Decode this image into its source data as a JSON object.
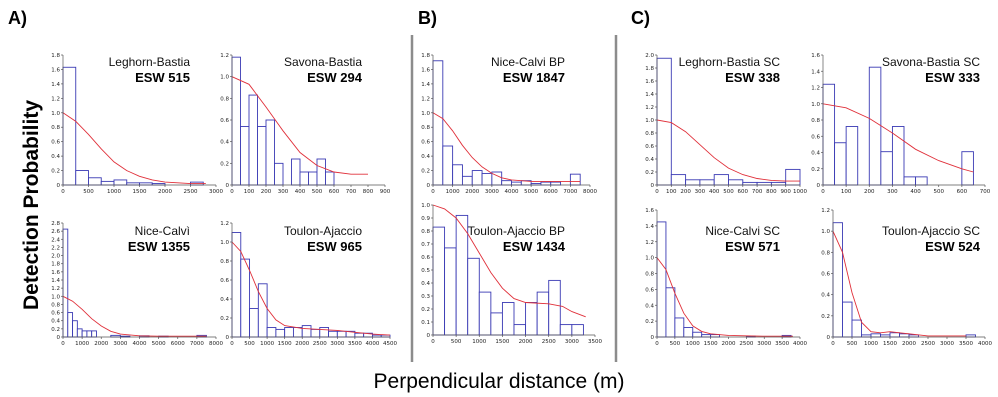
{
  "figure": {
    "panel_labels": [
      "A)",
      "B)",
      "C)"
    ],
    "ylabel": "Detection Probability",
    "xlabel": "Perpendicular distance (m)"
  },
  "chart_data": [
    {
      "id": "a1",
      "panel": "A",
      "type": "bar",
      "title": "Leghorn-Bastia",
      "esw": "ESW 515",
      "xlim": [
        0,
        3000
      ],
      "xticks": [
        0,
        500,
        1000,
        1500,
        2000,
        2500,
        3000
      ],
      "ylim": [
        0,
        1.8
      ],
      "yticks": [
        "0",
        "0.2",
        "0.4",
        "0.6",
        "0.8",
        "1.0",
        "1.2",
        "1.4",
        "1.6",
        "1.8"
      ],
      "bins": [
        [
          0,
          250,
          1.63
        ],
        [
          250,
          500,
          0.2
        ],
        [
          500,
          750,
          0.1
        ],
        [
          750,
          1000,
          0.05
        ],
        [
          1000,
          1250,
          0.07
        ],
        [
          1250,
          1500,
          0.03
        ],
        [
          1500,
          1750,
          0.03
        ],
        [
          1750,
          2000,
          0.02
        ],
        [
          2500,
          2750,
          0.04
        ]
      ],
      "curve": [
        [
          0,
          1.0
        ],
        [
          250,
          0.88
        ],
        [
          500,
          0.7
        ],
        [
          750,
          0.5
        ],
        [
          1000,
          0.32
        ],
        [
          1250,
          0.2
        ],
        [
          1500,
          0.12
        ],
        [
          1750,
          0.07
        ],
        [
          2000,
          0.04
        ],
        [
          2500,
          0.02
        ],
        [
          2800,
          0.02
        ]
      ]
    },
    {
      "id": "a2",
      "panel": "A",
      "type": "bar",
      "title": "Savona-Bastia",
      "esw": "ESW 294",
      "xlim": [
        0,
        900
      ],
      "xticks": [
        0,
        100,
        200,
        300,
        400,
        500,
        600,
        700,
        800,
        900
      ],
      "ylim": [
        0,
        1.2
      ],
      "yticks": [
        "0",
        "0.2",
        "0.4",
        "0.6",
        "0.8",
        "1.0",
        "1.2"
      ],
      "bins": [
        [
          0,
          50,
          1.18
        ],
        [
          50,
          100,
          0.54
        ],
        [
          100,
          150,
          0.83
        ],
        [
          150,
          200,
          0.54
        ],
        [
          200,
          250,
          0.6
        ],
        [
          250,
          300,
          0.2
        ],
        [
          350,
          400,
          0.24
        ],
        [
          400,
          450,
          0.12
        ],
        [
          450,
          500,
          0.12
        ],
        [
          500,
          550,
          0.24
        ],
        [
          550,
          600,
          0.12
        ]
      ],
      "curve": [
        [
          0,
          1.0
        ],
        [
          100,
          0.93
        ],
        [
          200,
          0.72
        ],
        [
          300,
          0.5
        ],
        [
          400,
          0.3
        ],
        [
          500,
          0.18
        ],
        [
          600,
          0.12
        ],
        [
          700,
          0.1
        ],
        [
          800,
          0.1
        ]
      ]
    },
    {
      "id": "a3",
      "panel": "A",
      "type": "bar",
      "title": "Nice-Calvì",
      "esw": "ESW 1355",
      "xlim": [
        0,
        8000
      ],
      "xticks": [
        0,
        1000,
        2000,
        3000,
        4000,
        5000,
        6000,
        7000,
        8000
      ],
      "ylim": [
        0,
        2.8
      ],
      "yticks": [
        "0",
        "0.2",
        "0.4",
        "0.6",
        "0.8",
        "1.0",
        "1.2",
        "1.4",
        "1.6",
        "1.8",
        "2.0",
        "2.2",
        "2.4",
        "2.6",
        "2.8"
      ],
      "bins": [
        [
          0,
          250,
          2.65
        ],
        [
          250,
          500,
          0.6
        ],
        [
          500,
          750,
          0.4
        ],
        [
          750,
          1000,
          0.2
        ],
        [
          1000,
          1250,
          0.15
        ],
        [
          1250,
          1500,
          0.15
        ],
        [
          1500,
          1750,
          0.15
        ],
        [
          2500,
          3000,
          0.04
        ],
        [
          3000,
          3500,
          0.02
        ],
        [
          4000,
          4500,
          0.03
        ],
        [
          5000,
          5500,
          0.02
        ],
        [
          7000,
          7500,
          0.04
        ]
      ],
      "curve": [
        [
          0,
          1.0
        ],
        [
          500,
          0.88
        ],
        [
          1000,
          0.68
        ],
        [
          1500,
          0.45
        ],
        [
          2000,
          0.27
        ],
        [
          2500,
          0.14
        ],
        [
          3000,
          0.07
        ],
        [
          4000,
          0.03
        ],
        [
          5000,
          0.02
        ],
        [
          6000,
          0.02
        ],
        [
          7000,
          0.02
        ],
        [
          7500,
          0.02
        ]
      ]
    },
    {
      "id": "a4",
      "panel": "A",
      "type": "bar",
      "title": "Toulon-Ajaccio",
      "esw": "ESW 965",
      "xlim": [
        0,
        4500
      ],
      "xticks": [
        0,
        500,
        1000,
        1500,
        2000,
        2500,
        3000,
        3500,
        4000,
        4500
      ],
      "ylim": [
        0,
        1.2
      ],
      "yticks": [
        "0",
        "0.2",
        "0.4",
        "0.6",
        "0.8",
        "1.0",
        "1.2"
      ],
      "bins": [
        [
          0,
          250,
          1.1
        ],
        [
          250,
          500,
          0.82
        ],
        [
          500,
          750,
          0.3
        ],
        [
          750,
          1000,
          0.56
        ],
        [
          1000,
          1250,
          0.1
        ],
        [
          1250,
          1500,
          0.08
        ],
        [
          1500,
          1750,
          0.1
        ],
        [
          1750,
          2000,
          0.1
        ],
        [
          2000,
          2250,
          0.12
        ],
        [
          2250,
          2500,
          0.08
        ],
        [
          2500,
          2750,
          0.1
        ],
        [
          2750,
          3000,
          0.06
        ],
        [
          3000,
          3250,
          0.06
        ],
        [
          3250,
          3500,
          0.06
        ],
        [
          3500,
          3750,
          0.04
        ],
        [
          3750,
          4000,
          0.04
        ],
        [
          4000,
          4250,
          0.02
        ],
        [
          4250,
          4500,
          0.02
        ]
      ],
      "curve": [
        [
          0,
          1.0
        ],
        [
          250,
          0.9
        ],
        [
          500,
          0.7
        ],
        [
          750,
          0.48
        ],
        [
          1000,
          0.3
        ],
        [
          1250,
          0.18
        ],
        [
          1500,
          0.12
        ],
        [
          2000,
          0.09
        ],
        [
          2500,
          0.08
        ],
        [
          3000,
          0.07
        ],
        [
          3500,
          0.05
        ],
        [
          4000,
          0.03
        ],
        [
          4500,
          0.02
        ]
      ]
    },
    {
      "id": "b1",
      "panel": "B",
      "type": "bar",
      "title": "Nice-Calvi BP",
      "esw": "ESW 1847",
      "xlim": [
        0,
        8000
      ],
      "xticks": [
        0,
        1000,
        2000,
        3000,
        4000,
        5000,
        6000,
        7000,
        8000
      ],
      "ylim": [
        0,
        1.8
      ],
      "yticks": [
        "0",
        "0.2",
        "0.4",
        "0.6",
        "0.8",
        "1.0",
        "1.2",
        "1.4",
        "1.6",
        "1.8"
      ],
      "bins": [
        [
          0,
          500,
          1.72
        ],
        [
          500,
          1000,
          0.54
        ],
        [
          1000,
          1500,
          0.28
        ],
        [
          1500,
          2000,
          0.12
        ],
        [
          2000,
          2500,
          0.2
        ],
        [
          2500,
          3000,
          0.16
        ],
        [
          3000,
          3500,
          0.18
        ],
        [
          3500,
          4000,
          0.06
        ],
        [
          4000,
          4500,
          0.04
        ],
        [
          4500,
          5000,
          0.06
        ],
        [
          5000,
          5500,
          0.02
        ],
        [
          5500,
          6000,
          0.04
        ],
        [
          6000,
          6500,
          0.04
        ],
        [
          7000,
          7500,
          0.15
        ]
      ],
      "curve": [
        [
          0,
          1.0
        ],
        [
          500,
          0.92
        ],
        [
          1000,
          0.75
        ],
        [
          1500,
          0.55
        ],
        [
          2000,
          0.38
        ],
        [
          2500,
          0.25
        ],
        [
          3000,
          0.16
        ],
        [
          3500,
          0.1
        ],
        [
          4000,
          0.07
        ],
        [
          5000,
          0.05
        ],
        [
          6000,
          0.05
        ],
        [
          7000,
          0.05
        ],
        [
          7500,
          0.05
        ]
      ]
    },
    {
      "id": "b2",
      "panel": "B",
      "type": "bar",
      "title": "Toulon-Ajaccio BP",
      "esw": "ESW 1434",
      "xlim": [
        0,
        3500
      ],
      "xticks": [
        0,
        500,
        1000,
        1500,
        2000,
        2500,
        3000,
        3500
      ],
      "ylim": [
        0,
        1.0
      ],
      "yticks": [
        "0",
        "0.1",
        "0.2",
        "0.3",
        "0.4",
        "0.5",
        "0.6",
        "0.7",
        "0.8",
        "0.9",
        "1.0"
      ],
      "bins": [
        [
          0,
          250,
          0.83
        ],
        [
          250,
          500,
          0.67
        ],
        [
          500,
          750,
          0.92
        ],
        [
          750,
          1000,
          0.59
        ],
        [
          1000,
          1250,
          0.33
        ],
        [
          1250,
          1500,
          0.17
        ],
        [
          1500,
          1750,
          0.25
        ],
        [
          1750,
          2000,
          0.08
        ],
        [
          2000,
          2250,
          0.25
        ],
        [
          2250,
          2500,
          0.33
        ],
        [
          2500,
          2750,
          0.42
        ],
        [
          2750,
          3000,
          0.08
        ],
        [
          3000,
          3250,
          0.08
        ]
      ],
      "curve": [
        [
          0,
          1.0
        ],
        [
          250,
          0.97
        ],
        [
          500,
          0.9
        ],
        [
          750,
          0.78
        ],
        [
          1000,
          0.63
        ],
        [
          1250,
          0.48
        ],
        [
          1500,
          0.36
        ],
        [
          1750,
          0.28
        ],
        [
          2000,
          0.25
        ],
        [
          2500,
          0.24
        ],
        [
          2800,
          0.22
        ],
        [
          3000,
          0.18
        ],
        [
          3300,
          0.14
        ]
      ]
    },
    {
      "id": "c1",
      "panel": "C",
      "type": "bar",
      "title": "Leghorn-Bastia SC",
      "esw": "ESW 338",
      "xlim": [
        0,
        1000
      ],
      "xticks": [
        0,
        100,
        200,
        300,
        400,
        500,
        600,
        700,
        800,
        900,
        1000
      ],
      "ylim": [
        0,
        2.0
      ],
      "yticks": [
        "0",
        "0.2",
        "0.4",
        "0.6",
        "0.8",
        "1.0",
        "1.2",
        "1.4",
        "1.6",
        "1.8",
        "2.0"
      ],
      "bins": [
        [
          0,
          100,
          1.95
        ],
        [
          100,
          200,
          0.16
        ],
        [
          200,
          300,
          0.08
        ],
        [
          300,
          400,
          0.08
        ],
        [
          400,
          500,
          0.16
        ],
        [
          500,
          600,
          0.08
        ],
        [
          600,
          700,
          0.04
        ],
        [
          700,
          800,
          0.04
        ],
        [
          800,
          900,
          0.04
        ],
        [
          900,
          1000,
          0.24
        ]
      ],
      "curve": [
        [
          0,
          1.0
        ],
        [
          100,
          0.96
        ],
        [
          200,
          0.82
        ],
        [
          300,
          0.62
        ],
        [
          400,
          0.42
        ],
        [
          500,
          0.26
        ],
        [
          600,
          0.16
        ],
        [
          700,
          0.1
        ],
        [
          800,
          0.07
        ],
        [
          900,
          0.06
        ],
        [
          1000,
          0.06
        ]
      ]
    },
    {
      "id": "c2",
      "panel": "C",
      "type": "bar",
      "title": "Savona-Bastia SC",
      "esw": "ESW 333",
      "xlim": [
        0,
        700
      ],
      "xticks": [
        0,
        100,
        200,
        300,
        400,
        500,
        600,
        700
      ],
      "ylim": [
        0,
        1.6
      ],
      "yticks": [
        "0",
        "0.2",
        "0.4",
        "0.6",
        "0.8",
        "1.0",
        "1.2",
        "1.4",
        "1.6"
      ],
      "bins": [
        [
          0,
          50,
          1.24
        ],
        [
          50,
          100,
          0.52
        ],
        [
          100,
          150,
          0.72
        ],
        [
          150,
          200,
          0.0
        ],
        [
          200,
          250,
          1.45
        ],
        [
          250,
          300,
          0.41
        ],
        [
          300,
          350,
          0.72
        ],
        [
          350,
          400,
          0.1
        ],
        [
          400,
          450,
          0.1
        ],
        [
          600,
          650,
          0.41
        ]
      ],
      "curve": [
        [
          0,
          1.0
        ],
        [
          100,
          0.95
        ],
        [
          200,
          0.82
        ],
        [
          300,
          0.64
        ],
        [
          400,
          0.44
        ],
        [
          500,
          0.3
        ],
        [
          600,
          0.2
        ],
        [
          650,
          0.16
        ]
      ]
    },
    {
      "id": "c3",
      "panel": "C",
      "type": "bar",
      "title": "Nice-Calvi SC",
      "esw": "ESW 571",
      "xlim": [
        0,
        4000
      ],
      "xticks": [
        0,
        500,
        1000,
        1500,
        2000,
        2500,
        3000,
        3500,
        4000
      ],
      "ylim": [
        0,
        1.6
      ],
      "yticks": [
        "0",
        "0.2",
        "0.4",
        "0.6",
        "0.8",
        "1.0",
        "1.2",
        "1.4",
        "1.6"
      ],
      "bins": [
        [
          0,
          250,
          1.45
        ],
        [
          250,
          500,
          0.62
        ],
        [
          500,
          750,
          0.24
        ],
        [
          750,
          1000,
          0.12
        ],
        [
          1000,
          1250,
          0.06
        ],
        [
          1250,
          1500,
          0.03
        ],
        [
          1500,
          1750,
          0.03
        ],
        [
          2500,
          2750,
          0.01
        ],
        [
          3500,
          3750,
          0.02
        ]
      ],
      "curve": [
        [
          0,
          1.0
        ],
        [
          250,
          0.85
        ],
        [
          500,
          0.55
        ],
        [
          750,
          0.3
        ],
        [
          1000,
          0.14
        ],
        [
          1250,
          0.07
        ],
        [
          1500,
          0.04
        ],
        [
          2000,
          0.02
        ],
        [
          3000,
          0.01
        ],
        [
          3800,
          0.01
        ]
      ]
    },
    {
      "id": "c4",
      "panel": "C",
      "type": "bar",
      "title": "Toulon-Ajaccio SC",
      "esw": "ESW 524",
      "xlim": [
        0,
        4000
      ],
      "xticks": [
        0,
        500,
        1000,
        1500,
        2000,
        2500,
        3000,
        3500,
        4000
      ],
      "ylim": [
        0,
        1.2
      ],
      "yticks": [
        "0",
        "0.2",
        "0.4",
        "0.6",
        "0.8",
        "1.0",
        "1.2"
      ],
      "bins": [
        [
          0,
          250,
          1.08
        ],
        [
          250,
          500,
          0.33
        ],
        [
          500,
          750,
          0.16
        ],
        [
          750,
          1000,
          0.02
        ],
        [
          1000,
          1250,
          0.03
        ],
        [
          1250,
          1500,
          0.02
        ],
        [
          1500,
          1750,
          0.04
        ],
        [
          1750,
          2000,
          0.03
        ],
        [
          2000,
          2250,
          0.02
        ],
        [
          3500,
          3750,
          0.02
        ]
      ],
      "curve": [
        [
          0,
          1.0
        ],
        [
          250,
          0.8
        ],
        [
          500,
          0.42
        ],
        [
          750,
          0.14
        ],
        [
          1000,
          0.05
        ],
        [
          1250,
          0.04
        ],
        [
          1500,
          0.05
        ],
        [
          1750,
          0.04
        ],
        [
          2000,
          0.03
        ],
        [
          2500,
          0.01
        ],
        [
          3500,
          0.01
        ]
      ]
    }
  ]
}
